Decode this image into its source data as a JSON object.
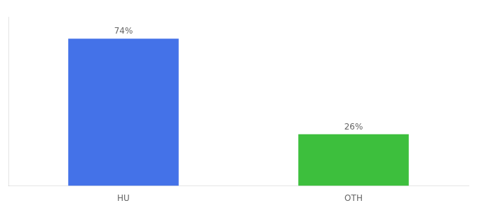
{
  "chart_data": {
    "type": "bar",
    "categories": [
      "HU",
      "OTH"
    ],
    "values": [
      74,
      26
    ],
    "value_labels": [
      "74%",
      "26%"
    ],
    "colors": [
      "#4472e8",
      "#3dbf3d"
    ],
    "ylim": [
      0,
      85
    ],
    "grid": false,
    "data_labels": true,
    "tick_labels": "x"
  }
}
